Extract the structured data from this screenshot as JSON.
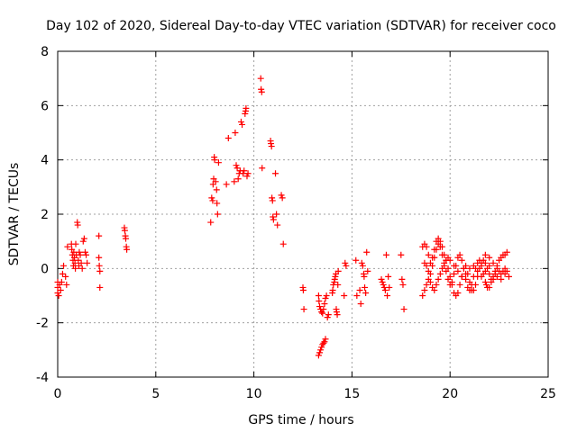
{
  "chart_data": {
    "type": "scatter",
    "title": "Day 102 of 2020, Sidereal Day-to-day VTEC variation (SDTVAR) for receiver coco",
    "xlabel": "GPS time / hours",
    "ylabel": "SDTVAR / TECUs",
    "xlim": [
      0,
      25
    ],
    "ylim": [
      -4,
      8
    ],
    "xticks": [
      0,
      5,
      10,
      15,
      20,
      25
    ],
    "yticks": [
      -4,
      -2,
      0,
      2,
      4,
      6,
      8
    ],
    "grid": true,
    "marker": "+",
    "color": "#ff0000",
    "series": [
      {
        "name": "SDTVAR",
        "points": [
          [
            0.0,
            -0.5
          ],
          [
            0.0,
            -0.7
          ],
          [
            0.0,
            -0.9
          ],
          [
            0.05,
            -1.0
          ],
          [
            0.1,
            -0.6
          ],
          [
            0.15,
            -0.8
          ],
          [
            0.2,
            -0.5
          ],
          [
            0.25,
            -0.2
          ],
          [
            0.3,
            0.1
          ],
          [
            0.4,
            -0.3
          ],
          [
            0.45,
            -0.6
          ],
          [
            0.5,
            0.8
          ],
          [
            0.7,
            0.9
          ],
          [
            0.72,
            0.7
          ],
          [
            0.75,
            0.5
          ],
          [
            0.78,
            0.3
          ],
          [
            0.8,
            0.1
          ],
          [
            0.82,
            0.6
          ],
          [
            0.85,
            0.4
          ],
          [
            0.88,
            0.2
          ],
          [
            0.9,
            0.0
          ],
          [
            0.92,
            0.9
          ],
          [
            0.95,
            0.5
          ],
          [
            1.0,
            1.7
          ],
          [
            1.02,
            1.6
          ],
          [
            1.05,
            0.3
          ],
          [
            1.08,
            0.1
          ],
          [
            1.1,
            0.6
          ],
          [
            1.15,
            0.5
          ],
          [
            1.2,
            0.2
          ],
          [
            1.25,
            0.0
          ],
          [
            1.3,
            1.0
          ],
          [
            1.35,
            1.1
          ],
          [
            1.4,
            0.6
          ],
          [
            1.45,
            0.5
          ],
          [
            1.5,
            0.2
          ],
          [
            2.1,
            1.2
          ],
          [
            2.1,
            0.4
          ],
          [
            2.12,
            0.1
          ],
          [
            2.15,
            -0.1
          ],
          [
            2.15,
            -0.7
          ],
          [
            3.4,
            1.5
          ],
          [
            3.42,
            1.4
          ],
          [
            3.45,
            1.2
          ],
          [
            3.47,
            1.1
          ],
          [
            3.5,
            0.8
          ],
          [
            3.52,
            0.7
          ],
          [
            7.8,
            1.7
          ],
          [
            7.85,
            2.6
          ],
          [
            7.9,
            2.5
          ],
          [
            7.92,
            3.1
          ],
          [
            7.95,
            3.3
          ],
          [
            7.98,
            4.1
          ],
          [
            8.0,
            4.0
          ],
          [
            8.05,
            3.2
          ],
          [
            8.1,
            2.9
          ],
          [
            8.12,
            2.4
          ],
          [
            8.15,
            2.0
          ],
          [
            8.2,
            3.9
          ],
          [
            8.6,
            3.1
          ],
          [
            8.7,
            4.8
          ],
          [
            9.0,
            3.2
          ],
          [
            9.05,
            5.0
          ],
          [
            9.1,
            3.8
          ],
          [
            9.15,
            3.7
          ],
          [
            9.2,
            3.3
          ],
          [
            9.25,
            3.5
          ],
          [
            9.3,
            3.6
          ],
          [
            9.35,
            5.4
          ],
          [
            9.4,
            5.3
          ],
          [
            9.45,
            3.5
          ],
          [
            9.5,
            3.6
          ],
          [
            9.55,
            5.7
          ],
          [
            9.58,
            5.8
          ],
          [
            9.6,
            5.9
          ],
          [
            9.65,
            3.4
          ],
          [
            9.7,
            3.5
          ],
          [
            10.35,
            7.0
          ],
          [
            10.37,
            6.6
          ],
          [
            10.4,
            6.5
          ],
          [
            10.42,
            3.7
          ],
          [
            10.85,
            4.7
          ],
          [
            10.87,
            4.6
          ],
          [
            10.9,
            4.5
          ],
          [
            10.92,
            2.6
          ],
          [
            10.95,
            2.5
          ],
          [
            10.97,
            1.9
          ],
          [
            11.0,
            1.8
          ],
          [
            11.1,
            3.5
          ],
          [
            11.15,
            2.0
          ],
          [
            11.2,
            1.6
          ],
          [
            11.4,
            2.7
          ],
          [
            11.45,
            2.6
          ],
          [
            11.5,
            0.9
          ],
          [
            12.5,
            -0.7
          ],
          [
            12.52,
            -0.8
          ],
          [
            12.55,
            -1.5
          ],
          [
            13.3,
            -3.2
          ],
          [
            13.35,
            -3.1
          ],
          [
            13.4,
            -3.0
          ],
          [
            13.45,
            -2.9
          ],
          [
            13.5,
            -2.8
          ],
          [
            13.55,
            -2.75
          ],
          [
            13.6,
            -2.7
          ],
          [
            13.65,
            -2.6
          ],
          [
            13.3,
            -1.0
          ],
          [
            13.32,
            -1.2
          ],
          [
            13.35,
            -1.4
          ],
          [
            13.4,
            -1.5
          ],
          [
            13.45,
            -1.6
          ],
          [
            13.5,
            -1.65
          ],
          [
            13.55,
            -1.5
          ],
          [
            13.6,
            -1.3
          ],
          [
            13.65,
            -1.1
          ],
          [
            13.7,
            -1.0
          ],
          [
            13.75,
            -1.8
          ],
          [
            13.8,
            -1.7
          ],
          [
            14.0,
            -0.9
          ],
          [
            14.02,
            -0.8
          ],
          [
            14.05,
            -0.6
          ],
          [
            14.1,
            -0.5
          ],
          [
            14.12,
            -0.4
          ],
          [
            14.15,
            -0.3
          ],
          [
            14.18,
            -0.2
          ],
          [
            14.2,
            -1.5
          ],
          [
            14.22,
            -1.6
          ],
          [
            14.25,
            -1.7
          ],
          [
            14.28,
            -0.6
          ],
          [
            14.3,
            -0.1
          ],
          [
            14.6,
            -1.0
          ],
          [
            14.65,
            0.2
          ],
          [
            14.7,
            0.1
          ],
          [
            15.2,
            0.3
          ],
          [
            15.25,
            -1.0
          ],
          [
            15.4,
            -0.8
          ],
          [
            15.45,
            -1.3
          ],
          [
            15.5,
            0.2
          ],
          [
            15.55,
            0.1
          ],
          [
            15.6,
            -0.2
          ],
          [
            15.62,
            -0.3
          ],
          [
            15.65,
            -0.7
          ],
          [
            15.7,
            -0.9
          ],
          [
            15.75,
            0.6
          ],
          [
            15.8,
            -0.1
          ],
          [
            16.5,
            -0.4
          ],
          [
            16.55,
            -0.5
          ],
          [
            16.6,
            -0.6
          ],
          [
            16.65,
            -0.7
          ],
          [
            16.7,
            -0.8
          ],
          [
            16.75,
            0.5
          ],
          [
            16.8,
            -1.0
          ],
          [
            16.85,
            -0.3
          ],
          [
            16.9,
            -0.7
          ],
          [
            17.5,
            0.5
          ],
          [
            17.55,
            -0.4
          ],
          [
            17.6,
            -0.6
          ],
          [
            17.65,
            -1.5
          ],
          [
            18.6,
            0.8
          ],
          [
            18.7,
            0.9
          ],
          [
            18.8,
            0.8
          ],
          [
            18.9,
            0.5
          ],
          [
            19.0,
            0.2
          ],
          [
            19.1,
            0.4
          ],
          [
            19.2,
            0.7
          ],
          [
            19.3,
            1.0
          ],
          [
            19.4,
            1.1
          ],
          [
            19.5,
            1.0
          ],
          [
            19.6,
            0.8
          ],
          [
            19.7,
            0.5
          ],
          [
            19.8,
            0.3
          ],
          [
            19.9,
            0.0
          ],
          [
            20.0,
            -0.3
          ],
          [
            20.1,
            -0.6
          ],
          [
            20.2,
            -0.9
          ],
          [
            20.3,
            -1.0
          ],
          [
            20.4,
            -0.9
          ],
          [
            20.5,
            -0.6
          ],
          [
            20.6,
            -0.3
          ],
          [
            20.7,
            0.0
          ],
          [
            20.8,
            0.1
          ],
          [
            20.9,
            -0.2
          ],
          [
            21.0,
            -0.5
          ],
          [
            21.1,
            -0.8
          ],
          [
            21.2,
            -0.8
          ],
          [
            21.3,
            -0.6
          ],
          [
            21.4,
            -0.3
          ],
          [
            21.5,
            0.0
          ],
          [
            21.6,
            0.2
          ],
          [
            21.7,
            0.3
          ],
          [
            21.8,
            0.2
          ],
          [
            21.9,
            0.0
          ],
          [
            22.0,
            -0.2
          ],
          [
            22.1,
            -0.4
          ],
          [
            22.2,
            -0.4
          ],
          [
            22.3,
            -0.2
          ],
          [
            22.4,
            0.1
          ],
          [
            22.5,
            0.3
          ],
          [
            22.6,
            0.4
          ],
          [
            22.7,
            0.5
          ],
          [
            22.8,
            0.5
          ],
          [
            22.9,
            0.6
          ],
          [
            18.6,
            -1.0
          ],
          [
            18.7,
            -0.8
          ],
          [
            18.8,
            -0.6
          ],
          [
            18.9,
            -0.4
          ],
          [
            19.0,
            -0.2
          ],
          [
            19.1,
            0.1
          ],
          [
            19.2,
            0.4
          ],
          [
            19.3,
            0.7
          ],
          [
            19.4,
            0.9
          ],
          [
            19.5,
            0.8
          ],
          [
            19.6,
            0.5
          ],
          [
            19.7,
            0.2
          ],
          [
            19.8,
            -0.1
          ],
          [
            19.9,
            -0.4
          ],
          [
            20.0,
            -0.6
          ],
          [
            20.1,
            -0.5
          ],
          [
            20.2,
            -0.2
          ],
          [
            20.3,
            0.1
          ],
          [
            20.4,
            0.4
          ],
          [
            20.5,
            0.5
          ],
          [
            20.6,
            0.3
          ],
          [
            20.7,
            0.0
          ],
          [
            20.8,
            -0.4
          ],
          [
            20.9,
            -0.7
          ],
          [
            21.0,
            -0.8
          ],
          [
            21.1,
            -0.6
          ],
          [
            21.2,
            -0.3
          ],
          [
            21.3,
            0.0
          ],
          [
            21.4,
            0.2
          ],
          [
            21.5,
            0.3
          ],
          [
            21.6,
            0.1
          ],
          [
            21.7,
            -0.2
          ],
          [
            21.8,
            -0.5
          ],
          [
            21.9,
            -0.7
          ],
          [
            22.0,
            -0.7
          ],
          [
            22.1,
            -0.5
          ],
          [
            22.2,
            -0.3
          ],
          [
            22.3,
            -0.1
          ],
          [
            22.4,
            0.0
          ],
          [
            22.5,
            -0.1
          ],
          [
            22.6,
            -0.2
          ],
          [
            22.7,
            -0.1
          ],
          [
            22.8,
            0.0
          ],
          [
            22.9,
            -0.1
          ],
          [
            18.7,
            0.2
          ],
          [
            18.8,
            0.1
          ],
          [
            18.9,
            -0.1
          ],
          [
            19.0,
            -0.5
          ],
          [
            19.1,
            -0.7
          ],
          [
            19.2,
            -0.8
          ],
          [
            19.3,
            -0.6
          ],
          [
            19.4,
            -0.4
          ],
          [
            19.5,
            -0.2
          ],
          [
            19.6,
            0.0
          ],
          [
            19.7,
            0.1
          ],
          [
            19.8,
            0.3
          ],
          [
            19.9,
            0.4
          ],
          [
            20.0,
            0.3
          ],
          [
            20.2,
            0.1
          ],
          [
            20.4,
            -0.1
          ],
          [
            20.6,
            -0.3
          ],
          [
            20.8,
            -0.2
          ],
          [
            21.0,
            0.0
          ],
          [
            21.2,
            0.1
          ],
          [
            21.4,
            -0.1
          ],
          [
            21.6,
            -0.3
          ],
          [
            21.8,
            -0.1
          ],
          [
            22.0,
            0.1
          ],
          [
            22.2,
            0.2
          ],
          [
            22.4,
            -0.3
          ],
          [
            22.6,
            -0.4
          ],
          [
            22.8,
            -0.2
          ],
          [
            23.0,
            -0.3
          ],
          [
            21.8,
            0.5
          ],
          [
            21.85,
            -0.6
          ],
          [
            22.0,
            0.4
          ]
        ]
      }
    ]
  }
}
